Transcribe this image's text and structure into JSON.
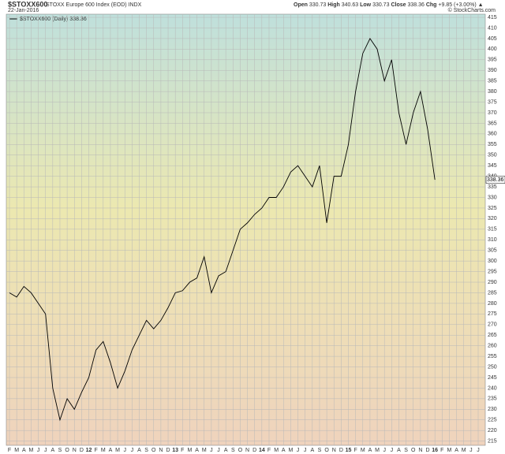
{
  "chart_data": {
    "type": "line",
    "symbol": "$STOXX600",
    "name": "STOXX Europe 600 Index (EOD) INDX",
    "date": "22-Jan-2016",
    "open_label": "Open",
    "open": 330.73,
    "high_label": "High",
    "high": 340.63,
    "low_label": "Low",
    "low": 330.73,
    "close_label": "Close",
    "close": 338.36,
    "chg_label": "Chg",
    "chg": "+9.85 (+3.00%)",
    "credit": "© StockCharts.com",
    "categories": [
      "F",
      "M",
      "A",
      "M",
      "J",
      "J",
      "A",
      "S",
      "O",
      "N",
      "D",
      "12",
      "F",
      "M",
      "A",
      "M",
      "J",
      "J",
      "A",
      "S",
      "O",
      "N",
      "D",
      "13",
      "F",
      "M",
      "A",
      "M",
      "J",
      "J",
      "A",
      "S",
      "O",
      "N",
      "D",
      "14",
      "F",
      "M",
      "A",
      "M",
      "J",
      "J",
      "A",
      "S",
      "O",
      "N",
      "D",
      "15",
      "F",
      "M",
      "A",
      "M",
      "J",
      "J",
      "A",
      "S",
      "O",
      "N",
      "D",
      "16",
      "F",
      "M",
      "A",
      "M",
      "J",
      "J"
    ],
    "series": [
      {
        "name": "$STOXX600 (Daily)",
        "color": "#000000",
        "values": [
          285,
          283,
          288,
          285,
          280,
          275,
          240,
          225,
          235,
          230,
          238,
          245,
          258,
          262,
          252,
          240,
          248,
          258,
          265,
          272,
          268,
          272,
          278,
          285,
          286,
          290,
          292,
          302,
          285,
          293,
          295,
          305,
          315,
          318,
          322,
          325,
          330,
          330,
          335,
          342,
          345,
          340,
          335,
          345,
          318,
          340,
          340,
          355,
          380,
          398,
          405,
          400,
          385,
          395,
          370,
          355,
          370,
          380,
          362,
          338.36,
          null,
          null,
          null,
          null,
          null,
          null
        ]
      }
    ],
    "ylim": [
      213,
      416.5
    ],
    "yticks": [
      215,
      220,
      225,
      230,
      235,
      240,
      245,
      250,
      255,
      260,
      265,
      270,
      275,
      280,
      285,
      290,
      295,
      300,
      305,
      310,
      315,
      320,
      325,
      330,
      335,
      340,
      345,
      350,
      355,
      360,
      365,
      370,
      375,
      380,
      385,
      390,
      395,
      400,
      405,
      410,
      415
    ],
    "grid": true
  }
}
